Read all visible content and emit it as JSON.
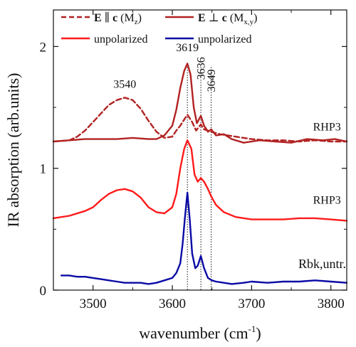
{
  "colors": {
    "polarized": "#b22222",
    "unpolarized_rhp3": "#ff1a1a",
    "unpolarized_rbk": "#0a0aa6",
    "axis": "#111111",
    "guide": "#111111"
  },
  "chart_data": {
    "type": "line",
    "xlabel": "wavenumber (cm",
    "xlabel_sup": "-1",
    "xlabel_end": ")",
    "ylabel": "IR absorption (arb.units)",
    "xlim": [
      3450,
      3820
    ],
    "ylim": [
      0,
      2.3
    ],
    "xticks": [
      3500,
      3600,
      3700,
      3800
    ],
    "yticks": [
      0,
      1,
      2
    ],
    "legend": {
      "position": "top",
      "entries": [
        {
          "series": "mz",
          "style": "dashed",
          "bold": "E",
          "sym": " ∥ ",
          "bold2": "c",
          "rest": " (M",
          "sub": "z",
          "end": ")"
        },
        {
          "series": "mxy",
          "style": "solid",
          "bold": "E",
          "sym": " ⊥ ",
          "bold2": "c",
          "rest": " (M",
          "sub": "x,y",
          "end": ")"
        },
        {
          "series": "rhp3_unpol",
          "style": "solid",
          "label": "unpolarized"
        },
        {
          "series": "rbk",
          "style": "solid",
          "label": "unpolarized"
        }
      ]
    },
    "annotations": [
      {
        "text": "3540",
        "x": 3540,
        "y": 1.66,
        "rotate": false
      },
      {
        "text": "3619",
        "x": 3619,
        "y": 1.96,
        "rotate": false
      },
      {
        "text": "3636",
        "x": 3641,
        "y": 1.82,
        "rotate": true
      },
      {
        "text": "3649",
        "x": 3654,
        "y": 1.72,
        "rotate": true
      },
      {
        "text": "RHP3",
        "x": 3795,
        "y": 1.31,
        "rotate": false
      },
      {
        "text": "RHP3",
        "x": 3795,
        "y": 0.71,
        "rotate": false
      },
      {
        "text": "Rbk,untr.",
        "x": 3789,
        "y": 0.18,
        "rotate": false
      }
    ],
    "guides": [
      3619,
      3636,
      3649
    ],
    "series": [
      {
        "id": "mz",
        "style": "dashed",
        "x": [
          3450,
          3470,
          3480,
          3490,
          3500,
          3510,
          3520,
          3530,
          3540,
          3550,
          3560,
          3570,
          3580,
          3590,
          3600,
          3605,
          3610,
          3615,
          3619,
          3625,
          3630,
          3636,
          3640,
          3649,
          3660,
          3670,
          3680,
          3700,
          3720,
          3740,
          3760,
          3780,
          3800,
          3820
        ],
        "y": [
          1.22,
          1.23,
          1.26,
          1.31,
          1.38,
          1.45,
          1.52,
          1.56,
          1.58,
          1.56,
          1.49,
          1.39,
          1.3,
          1.25,
          1.26,
          1.31,
          1.35,
          1.4,
          1.44,
          1.38,
          1.31,
          1.36,
          1.32,
          1.3,
          1.28,
          1.27,
          1.26,
          1.24,
          1.23,
          1.23,
          1.22,
          1.23,
          1.22,
          1.22
        ]
      },
      {
        "id": "mxy",
        "style": "solid",
        "x": [
          3450,
          3470,
          3490,
          3510,
          3530,
          3550,
          3570,
          3580,
          3590,
          3600,
          3605,
          3610,
          3615,
          3619,
          3623,
          3627,
          3631,
          3636,
          3640,
          3645,
          3649,
          3655,
          3665,
          3675,
          3690,
          3710,
          3730,
          3750,
          3770,
          3790,
          3805,
          3820
        ],
        "y": [
          1.22,
          1.23,
          1.24,
          1.24,
          1.24,
          1.25,
          1.24,
          1.24,
          1.27,
          1.35,
          1.48,
          1.66,
          1.8,
          1.86,
          1.77,
          1.5,
          1.37,
          1.43,
          1.35,
          1.3,
          1.32,
          1.27,
          1.28,
          1.24,
          1.21,
          1.23,
          1.22,
          1.21,
          1.24,
          1.23,
          1.24,
          1.22
        ]
      },
      {
        "id": "rhp3_unpol",
        "style": "solid",
        "x": [
          3450,
          3470,
          3490,
          3500,
          3510,
          3520,
          3530,
          3540,
          3550,
          3560,
          3570,
          3580,
          3590,
          3600,
          3605,
          3610,
          3615,
          3619,
          3624,
          3628,
          3632,
          3636,
          3640,
          3645,
          3649,
          3655,
          3665,
          3680,
          3700,
          3720,
          3740,
          3760,
          3780,
          3800,
          3820
        ],
        "y": [
          0.59,
          0.61,
          0.65,
          0.68,
          0.74,
          0.79,
          0.82,
          0.83,
          0.81,
          0.76,
          0.68,
          0.64,
          0.63,
          0.68,
          0.79,
          1.0,
          1.16,
          1.23,
          1.16,
          0.95,
          0.89,
          0.92,
          0.89,
          0.83,
          0.77,
          0.7,
          0.64,
          0.6,
          0.58,
          0.58,
          0.58,
          0.59,
          0.59,
          0.58,
          0.57
        ]
      },
      {
        "id": "rbk",
        "style": "solid",
        "x": [
          3460,
          3470,
          3480,
          3490,
          3500,
          3510,
          3520,
          3530,
          3540,
          3550,
          3560,
          3570,
          3580,
          3590,
          3600,
          3605,
          3610,
          3613,
          3616,
          3619,
          3622,
          3625,
          3629,
          3632,
          3636,
          3640,
          3645,
          3650,
          3655,
          3665,
          3675,
          3690,
          3700,
          3720,
          3740,
          3760,
          3780,
          3800,
          3820
        ],
        "y": [
          0.12,
          0.12,
          0.11,
          0.11,
          0.1,
          0.09,
          0.08,
          0.07,
          0.06,
          0.06,
          0.06,
          0.05,
          0.06,
          0.08,
          0.1,
          0.14,
          0.22,
          0.38,
          0.6,
          0.8,
          0.58,
          0.3,
          0.18,
          0.2,
          0.28,
          0.18,
          0.1,
          0.08,
          0.07,
          0.06,
          0.05,
          0.06,
          0.07,
          0.06,
          0.07,
          0.07,
          0.08,
          0.07,
          0.06
        ]
      }
    ]
  }
}
